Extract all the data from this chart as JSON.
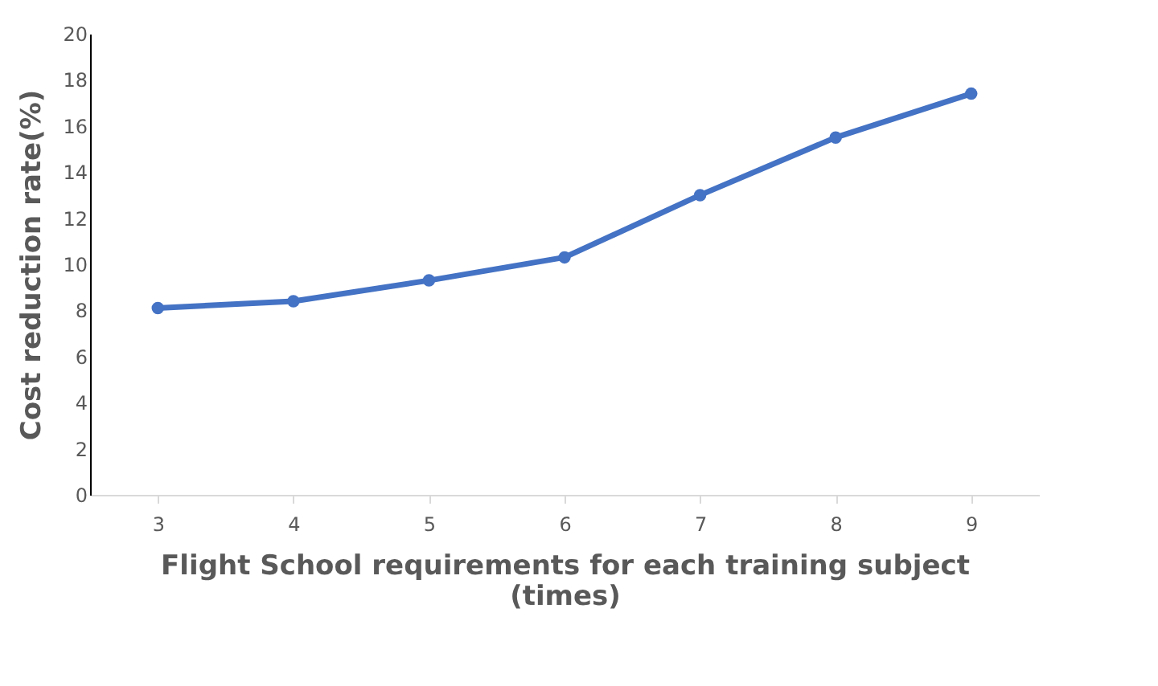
{
  "chart_data": {
    "type": "line",
    "categories": [
      "3",
      "4",
      "5",
      "6",
      "7",
      "8",
      "9"
    ],
    "series": [
      {
        "color": "#4472c4",
        "values": [
          8.1,
          8.4,
          9.3,
          10.3,
          13.0,
          15.5,
          17.4
        ]
      }
    ],
    "xlabel": "Flight School requirements for each training subject (times)",
    "ylabel": "Cost reduction rate(%)",
    "ylim": [
      0,
      20
    ],
    "yticks": [
      0,
      2,
      4,
      6,
      8,
      10,
      12,
      14,
      16,
      18,
      20
    ],
    "grid": false,
    "marker": "circle",
    "line_style": "solid"
  }
}
